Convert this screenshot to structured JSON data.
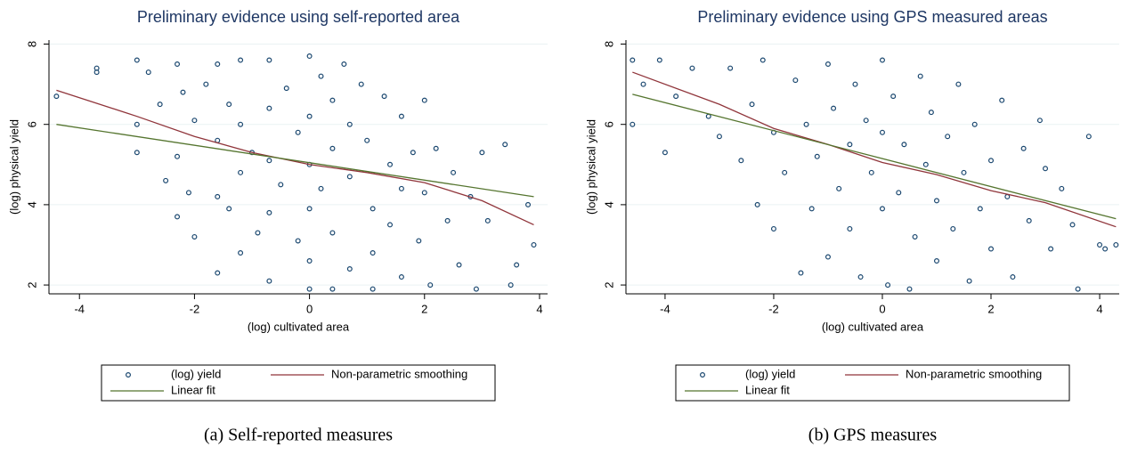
{
  "chart_data": [
    {
      "type": "scatter",
      "title": "Preliminary evidence using self-reported area",
      "xlabel": "(log) cultivated area",
      "ylabel": "(log) physical yield",
      "caption": "(a) Self-reported measures",
      "xlim": [
        -4.53,
        4.14
      ],
      "ylim": [
        1.78,
        8.1
      ],
      "xticks": [
        -4,
        -2,
        0,
        2,
        4
      ],
      "yticks": [
        2,
        4,
        6,
        8
      ],
      "grid": true,
      "series": [
        {
          "name": "(log) yield",
          "color": "#1a476f",
          "style": "marker",
          "x": [
            -4.4,
            -3.7,
            -3.7,
            -3,
            -3,
            -3,
            -2.8,
            -2.6,
            -2.5,
            -2.3,
            -2.3,
            -2.3,
            -2.2,
            -2.1,
            -2,
            -2,
            -1.8,
            -1.6,
            -1.6,
            -1.6,
            -1.6,
            -1.4,
            -1.4,
            -1.2,
            -1.2,
            -1.2,
            -1.2,
            -1,
            -0.9,
            -0.7,
            -0.7,
            -0.7,
            -0.7,
            -0.7,
            -0.5,
            -0.4,
            -0.2,
            -0.2,
            0,
            0,
            0,
            0,
            0,
            0,
            0.2,
            0.2,
            0.4,
            0.4,
            0.4,
            0.4,
            0.6,
            0.7,
            0.7,
            0.7,
            0.9,
            1,
            1.1,
            1.1,
            1.1,
            1.3,
            1.4,
            1.4,
            1.6,
            1.6,
            1.6,
            1.8,
            1.9,
            2,
            2,
            2.1,
            2.2,
            2.4,
            2.5,
            2.6,
            2.8,
            2.9,
            3,
            3.1,
            3.4,
            3.5,
            3.6,
            3.8,
            3.9
          ],
          "values": [
            6.7,
            7.3,
            7.4,
            7.6,
            6,
            5.3,
            7.3,
            6.5,
            4.6,
            7.5,
            5.2,
            3.7,
            6.8,
            4.3,
            6.1,
            3.2,
            7,
            7.5,
            5.6,
            4.2,
            2.3,
            6.5,
            3.9,
            7.6,
            6,
            4.8,
            2.8,
            5.3,
            3.3,
            7.6,
            6.4,
            5.1,
            3.8,
            2.1,
            4.5,
            6.9,
            3.1,
            5.8,
            7.7,
            6.2,
            5,
            3.9,
            2.6,
            1.9,
            7.2,
            4.4,
            6.6,
            5.4,
            3.3,
            1.9,
            7.5,
            6,
            4.7,
            2.4,
            7,
            5.6,
            3.9,
            2.8,
            1.9,
            6.7,
            5,
            3.5,
            6.2,
            4.4,
            2.2,
            5.3,
            3.1,
            6.6,
            4.3,
            2,
            5.4,
            3.6,
            4.8,
            2.5,
            4.2,
            1.9,
            5.3,
            3.6,
            5.5,
            2,
            2.5,
            4,
            3
          ]
        },
        {
          "name": "Non-parametric smoothing",
          "color": "#90353b",
          "style": "line",
          "x": [
            -4.4,
            -3,
            -2,
            -1,
            0,
            1,
            2,
            3,
            3.9
          ],
          "values": [
            6.85,
            6.2,
            5.7,
            5.3,
            5.0,
            4.8,
            4.55,
            4.1,
            3.5
          ]
        },
        {
          "name": "Linear fit",
          "color": "#55752f",
          "style": "line",
          "x": [
            -4.4,
            3.9
          ],
          "values": [
            6.0,
            4.2
          ]
        }
      ]
    },
    {
      "type": "scatter",
      "title": "Preliminary evidence using GPS measured areas",
      "xlabel": "(log) cultivated area",
      "ylabel": "(log) physical yield",
      "caption": "(b) GPS measures",
      "xlim": [
        -4.72,
        4.36
      ],
      "ylim": [
        1.78,
        8.1
      ],
      "xticks": [
        -4,
        -2,
        0,
        2,
        4
      ],
      "yticks": [
        2,
        4,
        6,
        8
      ],
      "grid": true,
      "series": [
        {
          "name": "(log) yield",
          "color": "#1a476f",
          "style": "marker",
          "x": [
            -4.6,
            -4.6,
            -4.4,
            -4.1,
            -4,
            -3.8,
            -3.5,
            -3.2,
            -3,
            -2.8,
            -2.6,
            -2.4,
            -2.3,
            -2.2,
            -2,
            -2,
            -1.8,
            -1.6,
            -1.5,
            -1.4,
            -1.3,
            -1.2,
            -1,
            -1,
            -0.9,
            -0.8,
            -0.6,
            -0.6,
            -0.5,
            -0.4,
            -0.3,
            -0.2,
            0,
            0,
            0,
            0.1,
            0.2,
            0.3,
            0.4,
            0.5,
            0.6,
            0.7,
            0.8,
            0.9,
            1,
            1,
            1.2,
            1.3,
            1.4,
            1.5,
            1.6,
            1.7,
            1.8,
            2,
            2,
            2.2,
            2.3,
            2.4,
            2.6,
            2.7,
            2.9,
            3,
            3.1,
            3.3,
            3.5,
            3.6,
            3.8,
            4,
            4.1,
            4.3
          ],
          "values": [
            7.6,
            6,
            7,
            7.6,
            5.3,
            6.7,
            7.4,
            6.2,
            5.7,
            7.4,
            5.1,
            6.5,
            4,
            7.6,
            5.8,
            3.4,
            4.8,
            7.1,
            2.3,
            6,
            3.9,
            5.2,
            7.5,
            2.7,
            6.4,
            4.4,
            5.5,
            3.4,
            7,
            2.2,
            6.1,
            4.8,
            7.6,
            3.9,
            5.8,
            2,
            6.7,
            4.3,
            5.5,
            1.9,
            3.2,
            7.2,
            5,
            6.3,
            2.6,
            4.1,
            5.7,
            3.4,
            7,
            4.8,
            2.1,
            6,
            3.9,
            5.1,
            2.9,
            6.6,
            4.2,
            2.2,
            5.4,
            3.6,
            6.1,
            4.9,
            2.9,
            4.4,
            3.5,
            1.9,
            5.7,
            3,
            2.9,
            3
          ]
        },
        {
          "name": "Non-parametric smoothing",
          "color": "#90353b",
          "style": "line",
          "x": [
            -4.6,
            -3,
            -2,
            -1,
            0,
            1,
            2,
            3,
            4.3
          ],
          "values": [
            7.3,
            6.5,
            5.9,
            5.5,
            5.05,
            4.75,
            4.35,
            4.05,
            3.45
          ]
        },
        {
          "name": "Linear fit",
          "color": "#55752f",
          "style": "line",
          "x": [
            -4.6,
            4.3
          ],
          "values": [
            6.75,
            3.65
          ]
        }
      ]
    }
  ]
}
